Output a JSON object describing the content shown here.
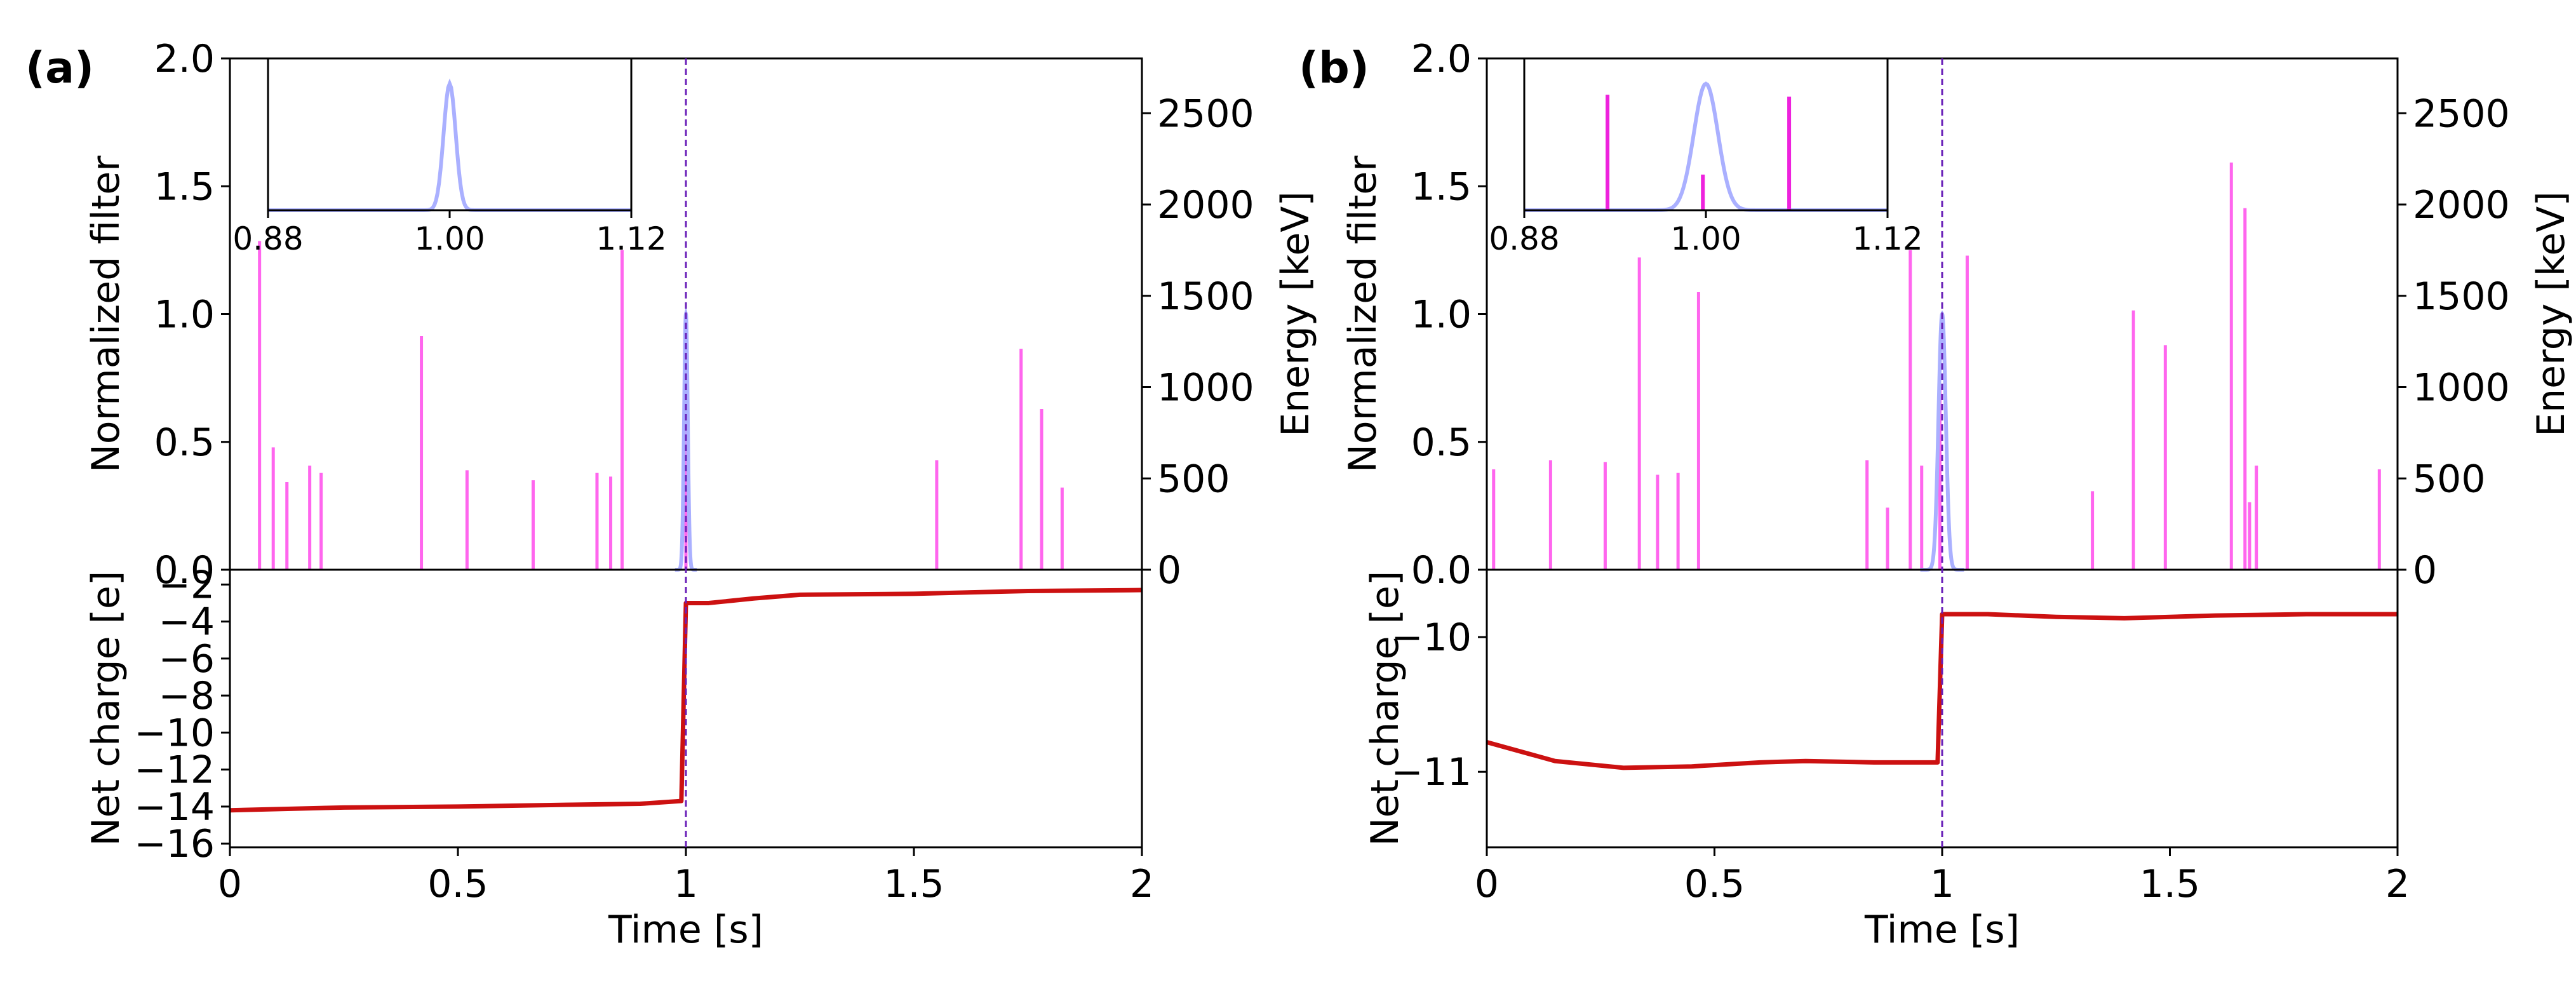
{
  "colors": {
    "energy_line": "#ff66ee",
    "filter_line": "#aab0ff",
    "charge_line": "#cc1111",
    "marker_line": "#6a1fb8",
    "inset_energy_line": "#ee22dd",
    "axis": "#000000"
  },
  "chart_data": [
    {
      "type": "line",
      "panel_label": "(a)",
      "xlabel": "Time [s]",
      "xlim": [
        0,
        2
      ],
      "xticks": [
        0,
        0.5,
        1,
        1.5,
        2
      ],
      "xtick_labels": [
        "0",
        "0.5",
        "1",
        "1.5",
        "2"
      ],
      "marker_x": 1.0,
      "top": {
        "ylabel_left": "Normalized filter",
        "ylabel_right": "Energy [keV]",
        "ylim_left": [
          0,
          2.0
        ],
        "yticks_left": [
          0.0,
          0.5,
          1.0,
          1.5,
          2.0
        ],
        "ytick_labels_left": [
          "0.0",
          "0.5",
          "1.0",
          "1.5",
          "2.0"
        ],
        "ylim_right": [
          0,
          2800
        ],
        "yticks_right": [
          0,
          500,
          1000,
          1500,
          2000,
          2500
        ],
        "ytick_labels_right": [
          "0",
          "500",
          "1000",
          "1500",
          "2000",
          "2500"
        ],
        "filter_series": {
          "name": "Normalized filter",
          "center": 1.0,
          "peak": 1.0,
          "sigma": 0.004
        },
        "energy_events": {
          "name": "Energy",
          "t": [
            0.065,
            0.095,
            0.125,
            0.175,
            0.2,
            0.42,
            0.52,
            0.665,
            0.805,
            0.835,
            0.86,
            1.0,
            1.55,
            1.735,
            1.78,
            1.825
          ],
          "e": [
            1800,
            670,
            480,
            570,
            530,
            1280,
            545,
            490,
            530,
            510,
            1750,
            1000,
            600,
            1210,
            880,
            450
          ]
        },
        "inset": {
          "xlim": [
            0.88,
            1.12
          ],
          "xticks": [
            0.88,
            1.0,
            1.12
          ],
          "xtick_labels": [
            "0.88",
            "1.00",
            "1.12"
          ],
          "energy_events": {
            "t": [],
            "e": []
          }
        }
      },
      "bottom": {
        "ylabel": "Net charge [e]",
        "ylim": [
          -16.2,
          -1.2
        ],
        "yticks": [
          -2,
          -4,
          -6,
          -8,
          -10,
          -12,
          -14,
          -16
        ],
        "ytick_labels": [
          "−2",
          "−4",
          "−6",
          "−8",
          "−10",
          "−12",
          "−14",
          "−16"
        ],
        "series": {
          "name": "Net charge",
          "x": [
            0,
            0.25,
            0.5,
            0.75,
            0.9,
            0.99,
            1.0,
            1.05,
            1.15,
            1.25,
            1.5,
            1.75,
            2.0
          ],
          "y": [
            -14.2,
            -14.05,
            -14.0,
            -13.9,
            -13.85,
            -13.7,
            -3.0,
            -3.0,
            -2.75,
            -2.55,
            -2.5,
            -2.35,
            -2.3
          ]
        }
      }
    },
    {
      "type": "line",
      "panel_label": "(b)",
      "xlabel": "Time [s]",
      "xlim": [
        0,
        2
      ],
      "xticks": [
        0,
        0.5,
        1,
        1.5,
        2
      ],
      "xtick_labels": [
        "0",
        "0.5",
        "1",
        "1.5",
        "2"
      ],
      "marker_x": 1.0,
      "top": {
        "ylabel_left": "Normalized filter",
        "ylabel_right": "Energy [keV]",
        "ylim_left": [
          0,
          2.0
        ],
        "yticks_left": [
          0.0,
          0.5,
          1.0,
          1.5,
          2.0
        ],
        "ytick_labels_left": [
          "0.0",
          "0.5",
          "1.0",
          "1.5",
          "2.0"
        ],
        "ylim_right": [
          0,
          2800
        ],
        "yticks_right": [
          0,
          500,
          1000,
          1500,
          2000,
          2500
        ],
        "ytick_labels_right": [
          "0",
          "500",
          "1000",
          "1500",
          "2000",
          "2500"
        ],
        "filter_series": {
          "name": "Normalized filter",
          "center": 1.0,
          "peak": 1.0,
          "sigma": 0.008
        },
        "energy_events": {
          "name": "Energy",
          "t": [
            0.015,
            0.14,
            0.26,
            0.335,
            0.375,
            0.42,
            0.465,
            0.835,
            0.88,
            0.93,
            0.955,
            0.995,
            1.055,
            1.33,
            1.42,
            1.49,
            1.635,
            1.665,
            1.675,
            1.69,
            1.96
          ],
          "e": [
            550,
            600,
            590,
            1710,
            520,
            530,
            1520,
            600,
            340,
            1750,
            570,
            1000,
            1720,
            430,
            1420,
            1230,
            2230,
            1980,
            370,
            570,
            550
          ]
        },
        "inset": {
          "xlim": [
            0.88,
            1.12
          ],
          "xticks": [
            0.88,
            1.0,
            1.12
          ],
          "xtick_labels": [
            "0.88",
            "1.00",
            "1.12"
          ],
          "energy_events": {
            "t": [
              0.935,
              0.998,
              1.055
            ],
            "e": [
              1750,
              540,
              1720
            ]
          }
        }
      },
      "bottom": {
        "ylabel": "Net charge [e]",
        "ylim": [
          -11.56,
          -9.5
        ],
        "yticks": [
          -10,
          -11
        ],
        "ytick_labels": [
          "−10",
          "−11"
        ],
        "series": {
          "name": "Net charge",
          "x": [
            0,
            0.15,
            0.3,
            0.45,
            0.6,
            0.7,
            0.85,
            0.99,
            1.0,
            1.1,
            1.25,
            1.4,
            1.6,
            1.8,
            2.0
          ],
          "y": [
            -10.78,
            -10.92,
            -10.97,
            -10.96,
            -10.93,
            -10.92,
            -10.93,
            -10.93,
            -9.83,
            -9.83,
            -9.85,
            -9.86,
            -9.84,
            -9.83,
            -9.83
          ]
        }
      }
    }
  ]
}
